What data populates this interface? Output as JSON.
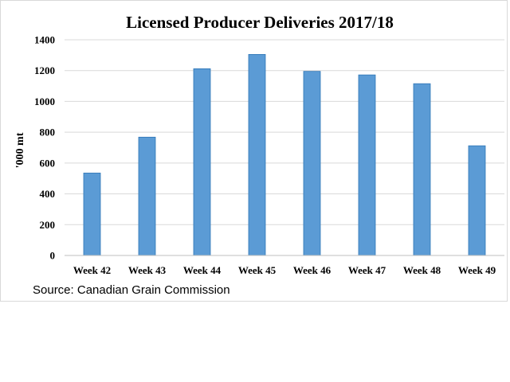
{
  "chart_data": {
    "type": "bar",
    "title": "Licensed Producer Deliveries 2017/18",
    "xlabel": "",
    "ylabel": "'000 mt",
    "categories": [
      "Week 42",
      "Week 43",
      "Week 44",
      "Week 45",
      "Week 46",
      "Week 47",
      "Week 48",
      "Week 49"
    ],
    "values": [
      535,
      768,
      1212,
      1305,
      1195,
      1172,
      1115,
      712
    ],
    "ylim": [
      0,
      1400
    ],
    "yticks": [
      0,
      200,
      400,
      600,
      800,
      1000,
      1200,
      1400
    ],
    "grid": true,
    "legend": "none",
    "bar_color": "#5b9bd5",
    "bar_edge_color": "#2e75b6",
    "grid_color": "#d9d9d9",
    "source": "Source: Canadian Grain Commission"
  }
}
